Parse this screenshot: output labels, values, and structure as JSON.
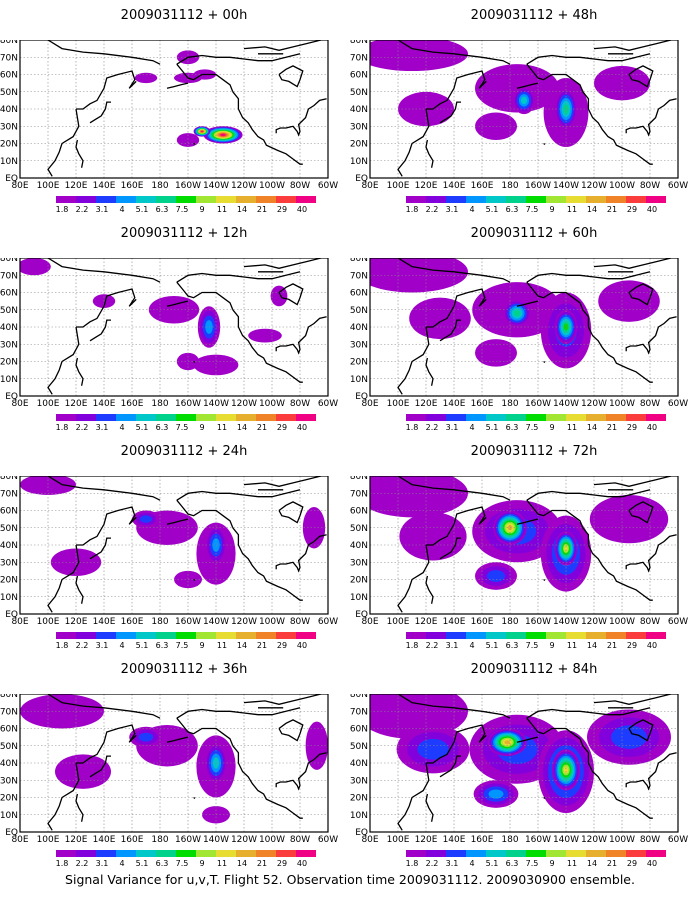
{
  "chart_data": {
    "type": "heatmap",
    "caption": "Signal Variance for u,v,T. Flight 52. Observation time 2009031112. 2009030900 ensemble.",
    "lon_ticks": [
      "80E",
      "100E",
      "120E",
      "140E",
      "160E",
      "180",
      "160W",
      "140W",
      "120W",
      "100W",
      "80W",
      "60W"
    ],
    "lat_ticks": [
      "EQ",
      "10N",
      "20N",
      "30N",
      "40N",
      "50N",
      "60N",
      "70N",
      "80N"
    ],
    "colorbar": {
      "levels": [
        "1.8",
        "2.2",
        "3.1",
        "4",
        "5.1",
        "6.3",
        "7.5",
        "9",
        "11",
        "14",
        "21",
        "29",
        "40"
      ],
      "colors": [
        "#a000c8",
        "#8200dc",
        "#1e3cff",
        "#0096ff",
        "#00c8c8",
        "#00d28c",
        "#00dc00",
        "#a0e632",
        "#e6dc32",
        "#e6af2d",
        "#f08228",
        "#fa3c3c",
        "#f00082"
      ]
    },
    "panels": [
      {
        "title": "2009031112 + 00h",
        "max_level": 13,
        "blobs": [
          [
            -160,
            70,
            8,
            4,
            1
          ],
          [
            -135,
            25,
            14,
            5,
            13
          ],
          [
            -148,
            60,
            8,
            3,
            1
          ],
          [
            -160,
            58,
            10,
            3,
            1
          ],
          [
            170,
            58,
            8,
            3,
            1
          ],
          [
            -160,
            22,
            8,
            4,
            1
          ],
          [
            -150,
            27,
            6,
            3,
            13
          ]
        ]
      },
      {
        "title": "2009031112 + 12h",
        "max_level": 4,
        "blobs": [
          [
            90,
            75,
            12,
            5,
            1
          ],
          [
            -170,
            50,
            18,
            8,
            1
          ],
          [
            -145,
            40,
            8,
            12,
            4
          ],
          [
            -140,
            18,
            16,
            6,
            1
          ],
          [
            -160,
            20,
            8,
            5,
            1
          ],
          [
            -105,
            35,
            12,
            4,
            1
          ],
          [
            140,
            55,
            8,
            4,
            1
          ],
          [
            -95,
            58,
            6,
            6,
            1
          ]
        ]
      },
      {
        "title": "2009031112 + 24h",
        "max_level": 5,
        "blobs": [
          [
            100,
            75,
            20,
            6,
            1
          ],
          [
            -175,
            50,
            22,
            10,
            1
          ],
          [
            -140,
            35,
            14,
            18,
            1
          ],
          [
            -140,
            40,
            8,
            12,
            4
          ],
          [
            120,
            30,
            18,
            8,
            1
          ],
          [
            -160,
            20,
            10,
            5,
            1
          ],
          [
            -70,
            50,
            8,
            12,
            1
          ],
          [
            170,
            55,
            10,
            5,
            3
          ]
        ]
      },
      {
        "title": "2009031112 + 36h",
        "max_level": 6,
        "blobs": [
          [
            110,
            70,
            30,
            10,
            1
          ],
          [
            -175,
            50,
            22,
            12,
            1
          ],
          [
            -140,
            38,
            14,
            18,
            1
          ],
          [
            -140,
            40,
            8,
            12,
            5
          ],
          [
            125,
            35,
            20,
            10,
            1
          ],
          [
            170,
            55,
            12,
            6,
            3
          ],
          [
            -140,
            10,
            10,
            5,
            1
          ],
          [
            -68,
            50,
            8,
            14,
            1
          ]
        ]
      },
      {
        "title": "2009031112 + 48h",
        "max_level": 7,
        "blobs": [
          [
            110,
            72,
            40,
            10,
            1
          ],
          [
            -175,
            52,
            30,
            14,
            1
          ],
          [
            -140,
            38,
            16,
            20,
            1
          ],
          [
            -140,
            40,
            8,
            12,
            6
          ],
          [
            -170,
            45,
            8,
            8,
            5
          ],
          [
            120,
            40,
            20,
            10,
            1
          ],
          [
            -100,
            55,
            20,
            10,
            1
          ],
          [
            170,
            30,
            15,
            8,
            1
          ]
        ]
      },
      {
        "title": "2009031112 + 60h",
        "max_level": 7,
        "blobs": [
          [
            110,
            72,
            40,
            12,
            1
          ],
          [
            -175,
            50,
            32,
            16,
            1
          ],
          [
            -140,
            38,
            18,
            22,
            3
          ],
          [
            -140,
            40,
            8,
            10,
            7
          ],
          [
            -175,
            48,
            10,
            8,
            6
          ],
          [
            130,
            45,
            22,
            12,
            1
          ],
          [
            -95,
            55,
            22,
            12,
            1
          ],
          [
            170,
            25,
            15,
            8,
            1
          ]
        ]
      },
      {
        "title": "2009031112 + 72h",
        "max_level": 10,
        "blobs": [
          [
            110,
            70,
            40,
            14,
            1
          ],
          [
            -175,
            48,
            32,
            18,
            3
          ],
          [
            -140,
            35,
            18,
            22,
            4
          ],
          [
            -140,
            38,
            8,
            10,
            9
          ],
          [
            180,
            50,
            12,
            10,
            10
          ],
          [
            -95,
            55,
            28,
            14,
            1
          ],
          [
            125,
            45,
            24,
            14,
            1
          ],
          [
            170,
            22,
            15,
            8,
            3
          ]
        ]
      },
      {
        "title": "2009031112 + 84h",
        "max_level": 10,
        "blobs": [
          [
            110,
            70,
            40,
            16,
            1
          ],
          [
            -175,
            48,
            34,
            20,
            3
          ],
          [
            -140,
            35,
            20,
            24,
            5
          ],
          [
            -140,
            36,
            10,
            12,
            9
          ],
          [
            178,
            52,
            14,
            8,
            10
          ],
          [
            -95,
            55,
            30,
            16,
            3
          ],
          [
            125,
            48,
            26,
            14,
            3
          ],
          [
            170,
            22,
            16,
            8,
            4
          ]
        ]
      }
    ]
  }
}
